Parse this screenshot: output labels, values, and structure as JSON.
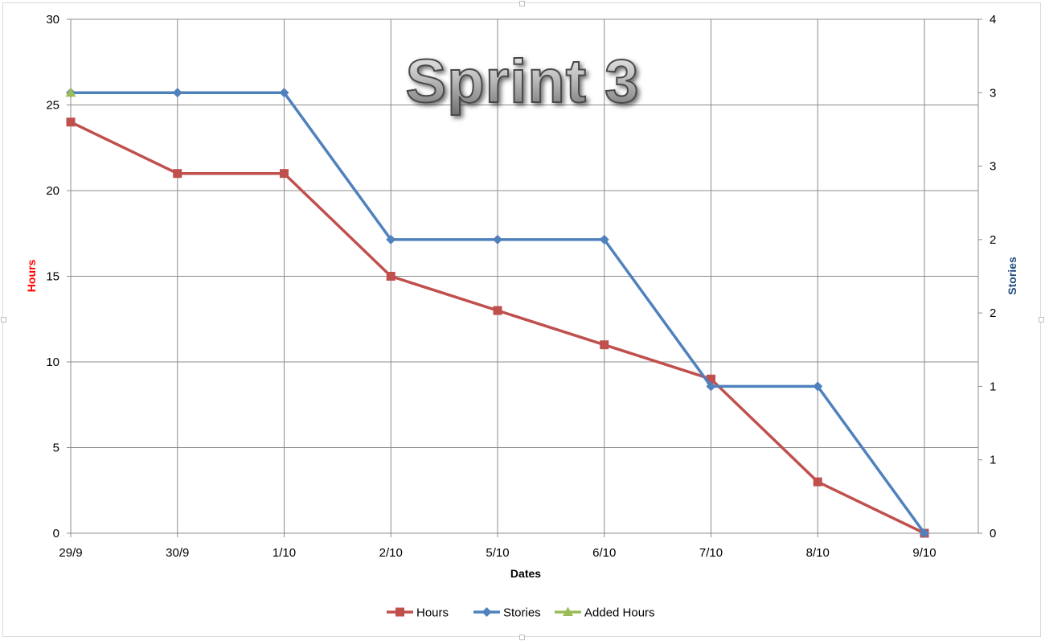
{
  "chart_data": {
    "type": "line",
    "title": "Sprint 3",
    "xlabel": "Dates",
    "ylabel_left": "Hours",
    "ylabel_right": "Stories",
    "categories": [
      "29/9",
      "30/9",
      "1/10",
      "2/10",
      "5/10",
      "6/10",
      "7/10",
      "8/10",
      "9/10"
    ],
    "y_left": {
      "min": 0,
      "max": 30,
      "ticks": [
        "0",
        "5",
        "10",
        "15",
        "20",
        "25",
        "30"
      ]
    },
    "y_right": {
      "min": 0,
      "max": 3.5,
      "ticks": [
        "0",
        "1",
        "1",
        "2",
        "2",
        "3",
        "3",
        "4"
      ]
    },
    "grid": true,
    "legend_position": "bottom",
    "series": [
      {
        "name": "Hours",
        "axis": "left",
        "color": "#c0504d",
        "marker": "square",
        "values": [
          24,
          21,
          21,
          15,
          13,
          11,
          9,
          3,
          0
        ]
      },
      {
        "name": "Stories",
        "axis": "right",
        "color": "#4f81bd",
        "marker": "diamond",
        "values": [
          3,
          3,
          3,
          2,
          2,
          2,
          1,
          1,
          0
        ]
      },
      {
        "name": "Added Hours",
        "axis": "right",
        "color": "#9bbb59",
        "marker": "triangle",
        "values": [
          3,
          null,
          null,
          null,
          null,
          null,
          null,
          null,
          null
        ]
      }
    ],
    "axis_title_colors": {
      "left": "#ff0000",
      "right": "#1f497d"
    }
  }
}
